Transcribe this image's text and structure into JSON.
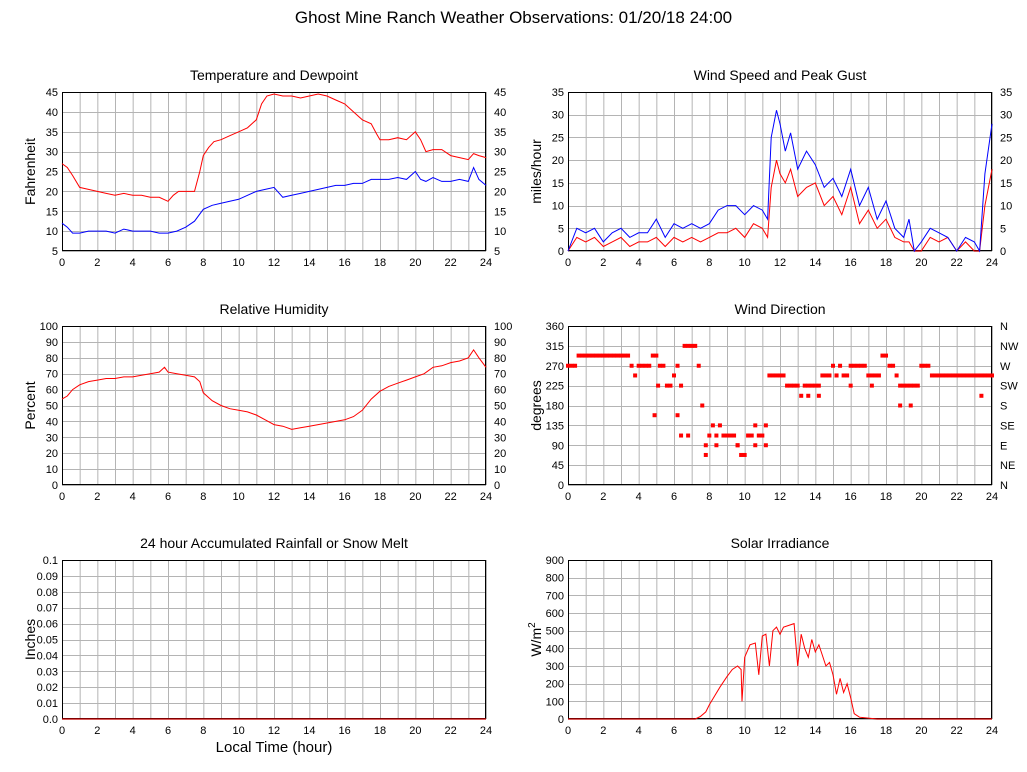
{
  "page_title": "Ghost Mine Ranch Weather Observations: 01/20/18 24:00",
  "x_axis_label": "Local Time (hour)",
  "chart_data": [
    {
      "id": "temp",
      "type": "line",
      "title": "Temperature and Dewpoint",
      "ylabel": "Fahrenheit",
      "xlim": [
        0,
        24
      ],
      "ylim": [
        5,
        45
      ],
      "yticks": [
        5,
        10,
        15,
        20,
        25,
        30,
        35,
        40,
        45
      ],
      "right_axis": true,
      "grid": true,
      "series": [
        {
          "color": "#ff0000",
          "x": [
            0,
            0.3,
            0.6,
            1,
            1.5,
            2,
            2.5,
            3,
            3.5,
            4,
            4.5,
            5,
            5.5,
            6,
            6.3,
            6.6,
            7,
            7.5,
            7.8,
            8,
            8.3,
            8.6,
            9,
            9.5,
            10,
            10.5,
            11,
            11.3,
            11.6,
            12,
            12.5,
            13,
            13.5,
            14,
            14.5,
            15,
            15.5,
            16,
            16.5,
            17,
            17.5,
            17.8,
            18,
            18.5,
            19,
            19.5,
            20,
            20.3,
            20.6,
            21,
            21.5,
            22,
            22.5,
            23,
            23.3,
            23.6,
            24
          ],
          "y": [
            27,
            26,
            24,
            21,
            20.5,
            20,
            19.5,
            19,
            19.5,
            19,
            19,
            18.5,
            18.5,
            17.5,
            19,
            20,
            20,
            20,
            25,
            29,
            31,
            32.5,
            33,
            34,
            35,
            36,
            38,
            42,
            44,
            44.5,
            44,
            44,
            43.5,
            44,
            44.5,
            44,
            43,
            42,
            40,
            38,
            37,
            34.5,
            33,
            33,
            33.5,
            33,
            35,
            33,
            30,
            30.5,
            30.5,
            29,
            28.5,
            28,
            29.5,
            29,
            28.5
          ]
        },
        {
          "color": "#0000ff",
          "x": [
            0,
            0.3,
            0.6,
            1,
            1.5,
            2,
            2.5,
            3,
            3.5,
            4,
            4.5,
            5,
            5.5,
            6,
            6.5,
            7,
            7.5,
            8,
            8.5,
            9,
            9.5,
            10,
            10.5,
            11,
            11.5,
            12,
            12.5,
            13,
            13.5,
            14,
            14.5,
            15,
            15.5,
            16,
            16.5,
            17,
            17.5,
            18,
            18.5,
            19,
            19.5,
            20,
            20.3,
            20.6,
            21,
            21.5,
            22,
            22.5,
            23,
            23.3,
            23.6,
            24
          ],
          "y": [
            12,
            11,
            9.5,
            9.5,
            10,
            10,
            10,
            9.5,
            10.5,
            10,
            10,
            10,
            9.5,
            9.5,
            10,
            11,
            12.5,
            15.5,
            16.5,
            17,
            17.5,
            18,
            19,
            20,
            20.5,
            21,
            18.5,
            19,
            19.5,
            20,
            20.5,
            21,
            21.5,
            21.5,
            22,
            22,
            23,
            23,
            23,
            23.5,
            23,
            25,
            23,
            22.5,
            23.5,
            22.5,
            22.5,
            23,
            22.5,
            26,
            23,
            21.5
          ]
        }
      ]
    },
    {
      "id": "wind",
      "type": "line",
      "title": "Wind Speed and Peak Gust",
      "ylabel": "miles/hour",
      "xlim": [
        0,
        24
      ],
      "ylim": [
        0,
        35
      ],
      "yticks": [
        0,
        5,
        10,
        15,
        20,
        25,
        30,
        35
      ],
      "right_axis": true,
      "grid": true,
      "series": [
        {
          "color": "#ff0000",
          "x": [
            0,
            0.5,
            1,
            1.5,
            2,
            2.5,
            3,
            3.5,
            4,
            4.5,
            5,
            5.5,
            6,
            6.5,
            7,
            7.5,
            8,
            8.5,
            9,
            9.5,
            10,
            10.5,
            11,
            11.3,
            11.5,
            11.8,
            12,
            12.3,
            12.6,
            13,
            13.5,
            14,
            14.5,
            15,
            15.5,
            16,
            16.5,
            17,
            17.5,
            18,
            18.5,
            19,
            19.3,
            19.6,
            20,
            20.5,
            21,
            21.5,
            22,
            22.5,
            23,
            23.3,
            23.6,
            24
          ],
          "y": [
            0,
            3,
            2,
            3,
            1,
            2,
            3,
            1,
            2,
            2,
            3,
            1,
            3,
            2,
            3,
            2,
            3,
            4,
            4,
            5,
            3,
            6,
            5,
            3,
            14,
            20,
            17,
            15,
            18,
            12,
            14,
            15,
            10,
            12,
            8,
            14,
            6,
            9,
            5,
            7,
            3,
            2,
            2,
            0,
            0,
            3,
            2,
            3,
            0,
            2,
            0,
            0,
            10,
            18
          ]
        },
        {
          "color": "#0000ff",
          "x": [
            0,
            0.5,
            1,
            1.5,
            2,
            2.5,
            3,
            3.5,
            4,
            4.5,
            5,
            5.5,
            6,
            6.5,
            7,
            7.5,
            8,
            8.5,
            9,
            9.5,
            10,
            10.5,
            11,
            11.3,
            11.5,
            11.8,
            12,
            12.3,
            12.6,
            13,
            13.5,
            14,
            14.5,
            15,
            15.5,
            16,
            16.5,
            17,
            17.5,
            18,
            18.5,
            19,
            19.3,
            19.6,
            20,
            20.5,
            21,
            21.5,
            22,
            22.5,
            23,
            23.3,
            23.6,
            24
          ],
          "y": [
            0,
            5,
            4,
            5,
            2,
            4,
            5,
            3,
            4,
            4,
            7,
            3,
            6,
            5,
            6,
            5,
            6,
            9,
            10,
            10,
            8,
            10,
            9,
            7,
            25,
            31,
            28,
            22,
            26,
            18,
            22,
            19,
            14,
            16,
            12,
            18,
            10,
            14,
            7,
            11,
            5,
            3,
            7,
            0,
            2,
            5,
            4,
            3,
            0,
            3,
            2,
            0,
            17,
            28
          ]
        }
      ]
    },
    {
      "id": "rh",
      "type": "line",
      "title": "Relative Humidity",
      "ylabel": "Percent",
      "xlim": [
        0,
        24
      ],
      "ylim": [
        0,
        100
      ],
      "yticks": [
        0,
        10,
        20,
        30,
        40,
        50,
        60,
        70,
        80,
        90,
        100
      ],
      "right_axis": true,
      "grid": true,
      "series": [
        {
          "color": "#ff0000",
          "x": [
            0,
            0.3,
            0.6,
            1,
            1.5,
            2,
            2.5,
            3,
            3.5,
            4,
            4.5,
            5,
            5.5,
            5.8,
            6,
            6.5,
            7,
            7.5,
            7.8,
            8,
            8.5,
            9,
            9.5,
            10,
            10.5,
            11,
            11.5,
            12,
            12.5,
            13,
            13.5,
            14,
            14.5,
            15,
            15.5,
            16,
            16.5,
            17,
            17.5,
            18,
            18.5,
            19,
            19.5,
            20,
            20.5,
            21,
            21.5,
            22,
            22.5,
            23,
            23.3,
            23.6,
            24
          ],
          "y": [
            54,
            56,
            60,
            63,
            65,
            66,
            67,
            67,
            68,
            68,
            69,
            70,
            71,
            74,
            71,
            70,
            69,
            68,
            65,
            58,
            53,
            50,
            48,
            47,
            46,
            44,
            41,
            38,
            37,
            35,
            36,
            37,
            38,
            39,
            40,
            41,
            43,
            47,
            54,
            59,
            62,
            64,
            66,
            68,
            70,
            74,
            75,
            77,
            78,
            80,
            85,
            80,
            74
          ]
        }
      ]
    },
    {
      "id": "wdir",
      "type": "scatter",
      "title": "Wind Direction",
      "ylabel": "degrees",
      "xlim": [
        0,
        24
      ],
      "ylim": [
        0,
        360
      ],
      "yticks": [
        0,
        45,
        90,
        135,
        180,
        225,
        270,
        315,
        360
      ],
      "right_labels": [
        "N",
        "NE",
        "E",
        "SE",
        "S",
        "SW",
        "W",
        "NW",
        "N"
      ],
      "grid": true,
      "series": [
        {
          "color": "#ff0000",
          "x": [
            0,
            0.2,
            0.4,
            0.6,
            0.8,
            1,
            1.2,
            1.4,
            1.6,
            1.8,
            2,
            2.2,
            2.4,
            2.6,
            2.8,
            3,
            3.2,
            3.4,
            3.6,
            3.8,
            4,
            4.2,
            4.4,
            4.6,
            4.8,
            5,
            5.2,
            5.4,
            5.6,
            5.8,
            6,
            6.2,
            6.4,
            6.6,
            6.8,
            7,
            7.2,
            7.4,
            7.6,
            7.8,
            8,
            8.2,
            8.4,
            8.6,
            8.8,
            9,
            9.2,
            9.4,
            9.6,
            9.8,
            10,
            10.2,
            10.4,
            10.6,
            10.8,
            11,
            11.2,
            11.4,
            11.6,
            11.8,
            12,
            12.2,
            12.4,
            12.6,
            12.8,
            13,
            13.2,
            13.4,
            13.6,
            13.8,
            14,
            14.2,
            14.4,
            14.6,
            14.8,
            15,
            15.2,
            15.4,
            15.6,
            15.8,
            16,
            16.2,
            16.4,
            16.6,
            16.8,
            17,
            17.2,
            17.4,
            17.6,
            17.8,
            18,
            18.2,
            18.4,
            18.6,
            18.8,
            19,
            19.2,
            19.4,
            19.6,
            19.8,
            20,
            20.2,
            20.4,
            20.6,
            20.8,
            21,
            21.2,
            21.4,
            21.6,
            21.8,
            22,
            22.2,
            22.4,
            22.6,
            22.8,
            23,
            23.2,
            23.4,
            23.6,
            23.8,
            24,
            4.9,
            5.1,
            6.2,
            6.4,
            6.8,
            7.8,
            8.4,
            9.6,
            10.2,
            10.6,
            11.2,
            13.6,
            14.2,
            15.2,
            16,
            17.2,
            18.8,
            19.4,
            23.4
          ],
          "y": [
            270,
            270,
            270,
            293,
            293,
            293,
            293,
            293,
            293,
            293,
            293,
            293,
            293,
            293,
            293,
            293,
            293,
            293,
            270,
            248,
            270,
            270,
            270,
            270,
            293,
            293,
            270,
            270,
            225,
            225,
            248,
            270,
            225,
            315,
            315,
            315,
            315,
            270,
            180,
            90,
            112,
            135,
            112,
            135,
            112,
            112,
            112,
            112,
            90,
            68,
            68,
            112,
            112,
            135,
            112,
            112,
            135,
            248,
            248,
            248,
            248,
            248,
            225,
            225,
            225,
            225,
            202,
            225,
            225,
            225,
            225,
            225,
            248,
            248,
            248,
            270,
            248,
            270,
            248,
            248,
            270,
            270,
            270,
            270,
            270,
            248,
            248,
            248,
            248,
            293,
            293,
            270,
            270,
            248,
            225,
            225,
            225,
            225,
            225,
            225,
            270,
            270,
            270,
            248,
            248,
            248,
            248,
            248,
            248,
            248,
            248,
            248,
            248,
            248,
            248,
            248,
            248,
            248,
            248,
            248,
            248,
            158,
            225,
            158,
            112,
            112,
            68,
            90,
            90,
            112,
            90,
            90,
            202,
            202,
            248,
            225,
            225,
            180,
            180,
            202
          ]
        }
      ]
    },
    {
      "id": "rain",
      "type": "line",
      "title": "24 hour Accumulated Rainfall or Snow Melt",
      "ylabel": "Inches",
      "xlim": [
        0,
        24
      ],
      "ylim": [
        0,
        0.1
      ],
      "yticks": [
        0.0,
        0.01,
        0.02,
        0.03,
        0.04,
        0.05,
        0.06,
        0.07,
        0.08,
        0.09,
        0.1
      ],
      "ytick_labels": [
        "0.0",
        "0.01",
        "0.02",
        "0.03",
        "0.04",
        "0.05",
        "0.06",
        "0.07",
        "0.08",
        "0.09",
        "0.1"
      ],
      "right_axis": false,
      "grid": true,
      "series": [
        {
          "color": "#ff0000",
          "x": [
            0,
            24
          ],
          "y": [
            0,
            0
          ]
        }
      ]
    },
    {
      "id": "solar",
      "type": "line",
      "title": "Solar Irradiance",
      "ylabel": "W/m",
      "ylabel_sup": "2",
      "xlim": [
        0,
        24
      ],
      "ylim": [
        0,
        900
      ],
      "yticks": [
        0,
        100,
        200,
        300,
        400,
        500,
        600,
        700,
        800,
        900
      ],
      "right_axis": false,
      "grid": true,
      "series": [
        {
          "color": "#ff0000",
          "x": [
            0,
            7.2,
            7.5,
            7.8,
            8,
            8.3,
            8.6,
            9,
            9.3,
            9.6,
            9.8,
            9.85,
            10,
            10.3,
            10.6,
            10.8,
            11,
            11.2,
            11.4,
            11.6,
            11.8,
            12,
            12.2,
            12.5,
            12.8,
            13,
            13.2,
            13.4,
            13.6,
            13.8,
            14,
            14.2,
            14.4,
            14.6,
            14.8,
            15,
            15.2,
            15.4,
            15.6,
            15.8,
            16,
            16.2,
            16.5,
            17,
            17.5,
            24
          ],
          "y": [
            0,
            0,
            15,
            40,
            80,
            130,
            180,
            240,
            280,
            300,
            280,
            100,
            350,
            420,
            430,
            250,
            470,
            480,
            300,
            500,
            520,
            480,
            520,
            530,
            540,
            300,
            480,
            400,
            350,
            450,
            380,
            420,
            360,
            300,
            320,
            250,
            140,
            230,
            150,
            200,
            120,
            30,
            10,
            5,
            0,
            0
          ]
        }
      ]
    }
  ]
}
